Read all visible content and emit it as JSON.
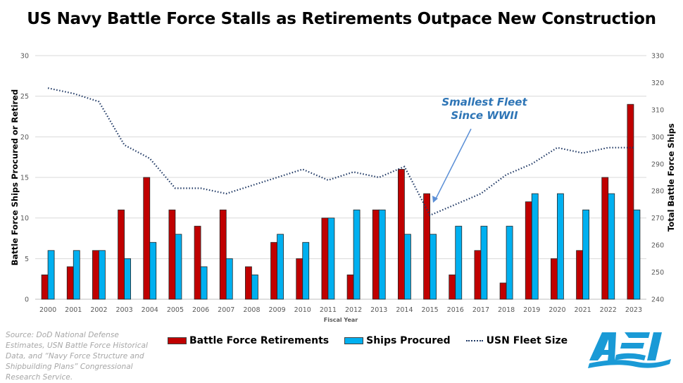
{
  "title": "US Navy Battle Force Stalls as Retirements Outpace New Construction",
  "source": "Source: DoD National Defense Estimates, USN Battle Force Historical Data, and “Navy Force Structure and Shipbuilding Plans” Congressional Research Service.",
  "logo": {
    "text": "AEI",
    "color": "#1a9ad6"
  },
  "annotation": {
    "line1": "Smallest Fleet",
    "line2": "Since WWII",
    "points_to_year": "2015",
    "color": "#2e75b6"
  },
  "legend": [
    {
      "label": "Battle Force Retirements",
      "color": "#c00000",
      "kind": "bar"
    },
    {
      "label": "Ships Procured",
      "color": "#00b0f0",
      "kind": "bar"
    },
    {
      "label": "USN Fleet Size",
      "color": "#1f3864",
      "kind": "dotted-line"
    }
  ],
  "chart_data": {
    "type": "bar",
    "title": "US Navy Battle Force Stalls as Retirements Outpace New Construction",
    "xlabel": "Fiscal Year",
    "ylabel": "Battle Force Ships Procured or Retired",
    "y2label": "Total Battle Force Ships",
    "ylim": [
      0,
      30
    ],
    "y2lim": [
      240,
      330
    ],
    "yticks": [
      0,
      5,
      10,
      15,
      20,
      25,
      30
    ],
    "y2ticks": [
      240,
      250,
      260,
      270,
      280,
      290,
      300,
      310,
      320,
      330
    ],
    "grid": true,
    "legend_position": "bottom",
    "categories": [
      "2000",
      "2001",
      "2002",
      "2003",
      "2004",
      "2005",
      "2006",
      "2007",
      "2008",
      "2009",
      "2010",
      "2011",
      "2012",
      "2013",
      "2014",
      "2015",
      "2016",
      "2017",
      "2018",
      "2019",
      "2020",
      "2021",
      "2022",
      "2023"
    ],
    "series": [
      {
        "name": "Battle Force Retirements",
        "type": "bar",
        "axis": "left",
        "color": "#c00000",
        "values": [
          3,
          4,
          6,
          11,
          15,
          11,
          9,
          11,
          4,
          7,
          5,
          10,
          3,
          11,
          16,
          13,
          3,
          6,
          2,
          12,
          5,
          6,
          15,
          24
        ]
      },
      {
        "name": "Ships Procured",
        "type": "bar",
        "axis": "left",
        "color": "#00b0f0",
        "values": [
          6,
          6,
          6,
          5,
          7,
          8,
          4,
          5,
          3,
          8,
          7,
          10,
          11,
          11,
          8,
          8,
          9,
          9,
          9,
          13,
          13,
          11,
          13,
          11
        ]
      },
      {
        "name": "USN Fleet Size",
        "type": "line",
        "style": "dotted",
        "axis": "right",
        "color": "#1f3864",
        "values": [
          318,
          316,
          313,
          297,
          292,
          281,
          281,
          279,
          282,
          285,
          288,
          284,
          287,
          285,
          289,
          271,
          275,
          279,
          286,
          290,
          296,
          294,
          296,
          296
        ]
      }
    ]
  }
}
